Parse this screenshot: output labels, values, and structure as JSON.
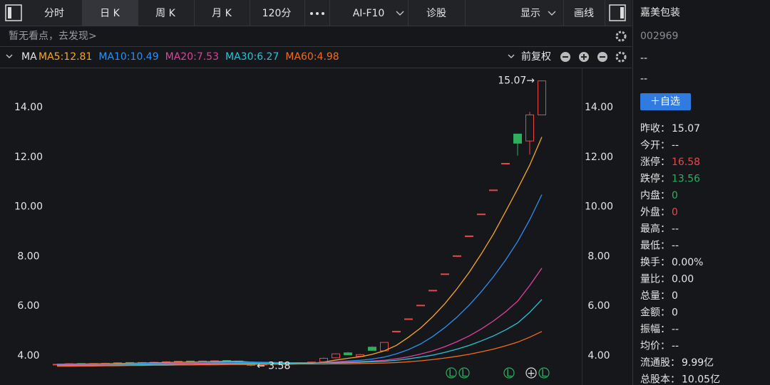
{
  "toolbar": {
    "tabs": [
      "分时",
      "日 K",
      "周 K",
      "月 K",
      "120分"
    ],
    "more": "AI-F10",
    "diagnose": "诊股",
    "display": "显示",
    "draw": "画线"
  },
  "notice": "暂无看点，去发现>",
  "adjust": "前复权",
  "indicator": "MA",
  "chart_data": {
    "type": "candlestick",
    "open": [
      3.64,
      3.66,
      3.69,
      3.67,
      3.69,
      3.7,
      3.73,
      3.71,
      3.73,
      3.74,
      3.75,
      3.79,
      3.77,
      3.78,
      3.81,
      3.79,
      3.75,
      3.63,
      3.67,
      3.71,
      3.7,
      3.72,
      3.76,
      3.92,
      4.12,
      3.98,
      4.35,
      4.2,
      4.99,
      5.49,
      6.04,
      6.64,
      7.3,
      8.03,
      8.83,
      9.71,
      10.68,
      11.75,
      12.93,
      12.65,
      13.7
    ],
    "high": [
      3.68,
      3.7,
      3.7,
      3.7,
      3.72,
      3.74,
      3.74,
      3.75,
      3.76,
      3.78,
      3.8,
      3.8,
      3.81,
      3.82,
      3.83,
      3.8,
      3.77,
      3.68,
      3.72,
      3.73,
      3.74,
      3.77,
      3.93,
      4.1,
      4.15,
      4.08,
      4.38,
      4.56,
      4.99,
      5.49,
      6.04,
      6.64,
      7.3,
      8.03,
      8.83,
      9.71,
      10.68,
      11.75,
      12.93,
      13.82,
      15.07
    ],
    "low": [
      3.62,
      3.64,
      3.65,
      3.66,
      3.67,
      3.68,
      3.69,
      3.7,
      3.71,
      3.72,
      3.73,
      3.75,
      3.75,
      3.76,
      3.76,
      3.72,
      3.58,
      3.61,
      3.65,
      3.67,
      3.68,
      3.7,
      3.74,
      3.9,
      4.02,
      3.95,
      4.2,
      4.18,
      4.99,
      5.49,
      6.04,
      6.64,
      7.3,
      8.03,
      8.83,
      9.71,
      10.68,
      11.75,
      12.06,
      12.1,
      13.7
    ],
    "close": [
      3.66,
      3.68,
      3.67,
      3.69,
      3.7,
      3.72,
      3.71,
      3.73,
      3.74,
      3.76,
      3.78,
      3.77,
      3.79,
      3.8,
      3.78,
      3.74,
      3.62,
      3.66,
      3.7,
      3.69,
      3.72,
      3.75,
      3.9,
      4.08,
      4.04,
      4.05,
      4.22,
      4.54,
      4.99,
      5.49,
      6.04,
      6.64,
      7.3,
      8.03,
      8.83,
      9.71,
      10.68,
      11.75,
      12.56,
      13.7,
      15.07
    ],
    "up_color": "#e8474a",
    "down_color": "#2fae5f",
    "series": [
      {
        "label": "MA5:12.81",
        "color": "#f5a623",
        "values": [
          3.66,
          3.67,
          3.67,
          3.68,
          3.68,
          3.69,
          3.7,
          3.71,
          3.72,
          3.73,
          3.74,
          3.75,
          3.76,
          3.77,
          3.78,
          3.78,
          3.75,
          3.72,
          3.7,
          3.68,
          3.68,
          3.7,
          3.75,
          3.83,
          3.9,
          3.96,
          4.06,
          4.2,
          4.42,
          4.75,
          5.12,
          5.58,
          6.1,
          6.7,
          7.36,
          8.1,
          8.9,
          9.8,
          10.72,
          11.68,
          12.81
        ]
      },
      {
        "label": "MA10:10.49",
        "color": "#2f8ff0",
        "values": [
          3.64,
          3.65,
          3.65,
          3.66,
          3.67,
          3.67,
          3.68,
          3.69,
          3.7,
          3.71,
          3.72,
          3.73,
          3.74,
          3.74,
          3.75,
          3.75,
          3.75,
          3.74,
          3.73,
          3.72,
          3.72,
          3.72,
          3.73,
          3.76,
          3.79,
          3.82,
          3.87,
          3.95,
          4.08,
          4.25,
          4.48,
          4.78,
          5.14,
          5.56,
          6.04,
          6.58,
          7.18,
          7.85,
          8.6,
          9.48,
          10.49
        ]
      },
      {
        "label": "MA20:7.53",
        "color": "#e040a0",
        "values": [
          3.62,
          3.63,
          3.63,
          3.64,
          3.64,
          3.65,
          3.66,
          3.66,
          3.67,
          3.68,
          3.69,
          3.69,
          3.7,
          3.71,
          3.71,
          3.72,
          3.72,
          3.72,
          3.72,
          3.72,
          3.72,
          3.72,
          3.73,
          3.74,
          3.75,
          3.77,
          3.79,
          3.82,
          3.88,
          3.96,
          4.07,
          4.2,
          4.37,
          4.57,
          4.8,
          5.08,
          5.4,
          5.77,
          6.2,
          6.83,
          7.53
        ]
      },
      {
        "label": "MA30:6.27",
        "color": "#29c3d8",
        "values": [
          3.6,
          3.61,
          3.61,
          3.62,
          3.62,
          3.63,
          3.63,
          3.64,
          3.65,
          3.65,
          3.66,
          3.67,
          3.67,
          3.68,
          3.68,
          3.69,
          3.69,
          3.7,
          3.7,
          3.7,
          3.71,
          3.71,
          3.72,
          3.72,
          3.73,
          3.74,
          3.76,
          3.78,
          3.82,
          3.88,
          3.95,
          4.03,
          4.14,
          4.27,
          4.42,
          4.6,
          4.8,
          5.04,
          5.32,
          5.75,
          6.27
        ]
      },
      {
        "label": "MA60:4.98",
        "color": "#f26b1d",
        "values": [
          3.58,
          3.58,
          3.59,
          3.59,
          3.6,
          3.6,
          3.61,
          3.61,
          3.62,
          3.62,
          3.63,
          3.63,
          3.64,
          3.64,
          3.65,
          3.65,
          3.65,
          3.66,
          3.66,
          3.66,
          3.67,
          3.67,
          3.67,
          3.68,
          3.68,
          3.69,
          3.7,
          3.71,
          3.73,
          3.76,
          3.8,
          3.85,
          3.91,
          3.98,
          4.06,
          4.16,
          4.27,
          4.4,
          4.55,
          4.75,
          4.98
        ]
      }
    ],
    "ylim": [
      3.55,
      15.5
    ],
    "yticks": [
      {
        "value": 4,
        "label": "4.00"
      },
      {
        "value": 6,
        "label": "6.00"
      },
      {
        "value": 8,
        "label": "8.00"
      },
      {
        "value": 10,
        "label": "10.00"
      },
      {
        "value": 12,
        "label": "12.00"
      },
      {
        "value": 14,
        "label": "14.00"
      }
    ],
    "max_label": "15.07→",
    "min_label": "← 3.58",
    "event_markers": [
      "L",
      "L",
      "L",
      "+",
      "L"
    ]
  },
  "side": {
    "name": "嘉美包装",
    "code": "002969",
    "price": "--",
    "change": "--",
    "button": "＋自选",
    "rows": [
      {
        "label": "昨收：",
        "value": "15.07"
      },
      {
        "label": "今开：",
        "value": "--"
      },
      {
        "label": "涨停：",
        "value": "16.58",
        "color": "#e8474a"
      },
      {
        "label": "跌停：",
        "value": "13.56",
        "color": "#2fae5f"
      },
      {
        "label": "内盘：",
        "value": "0",
        "color": "#2fae5f"
      },
      {
        "label": "外盘：",
        "value": "0",
        "color": "#e8474a"
      },
      {
        "label": "最高：",
        "value": "--"
      },
      {
        "label": "最低：",
        "value": "--"
      },
      {
        "label": "换手：",
        "value": "0.00%"
      },
      {
        "label": "量比：",
        "value": "0.00"
      },
      {
        "label": "总量：",
        "value": "0"
      },
      {
        "label": "金额：",
        "value": "0"
      },
      {
        "label": "振幅：",
        "value": "--"
      },
      {
        "label": "均价：",
        "value": "--"
      },
      {
        "label": "流通股：",
        "value": "9.99亿"
      },
      {
        "label": "总股本：",
        "value": "10.05亿"
      }
    ]
  }
}
